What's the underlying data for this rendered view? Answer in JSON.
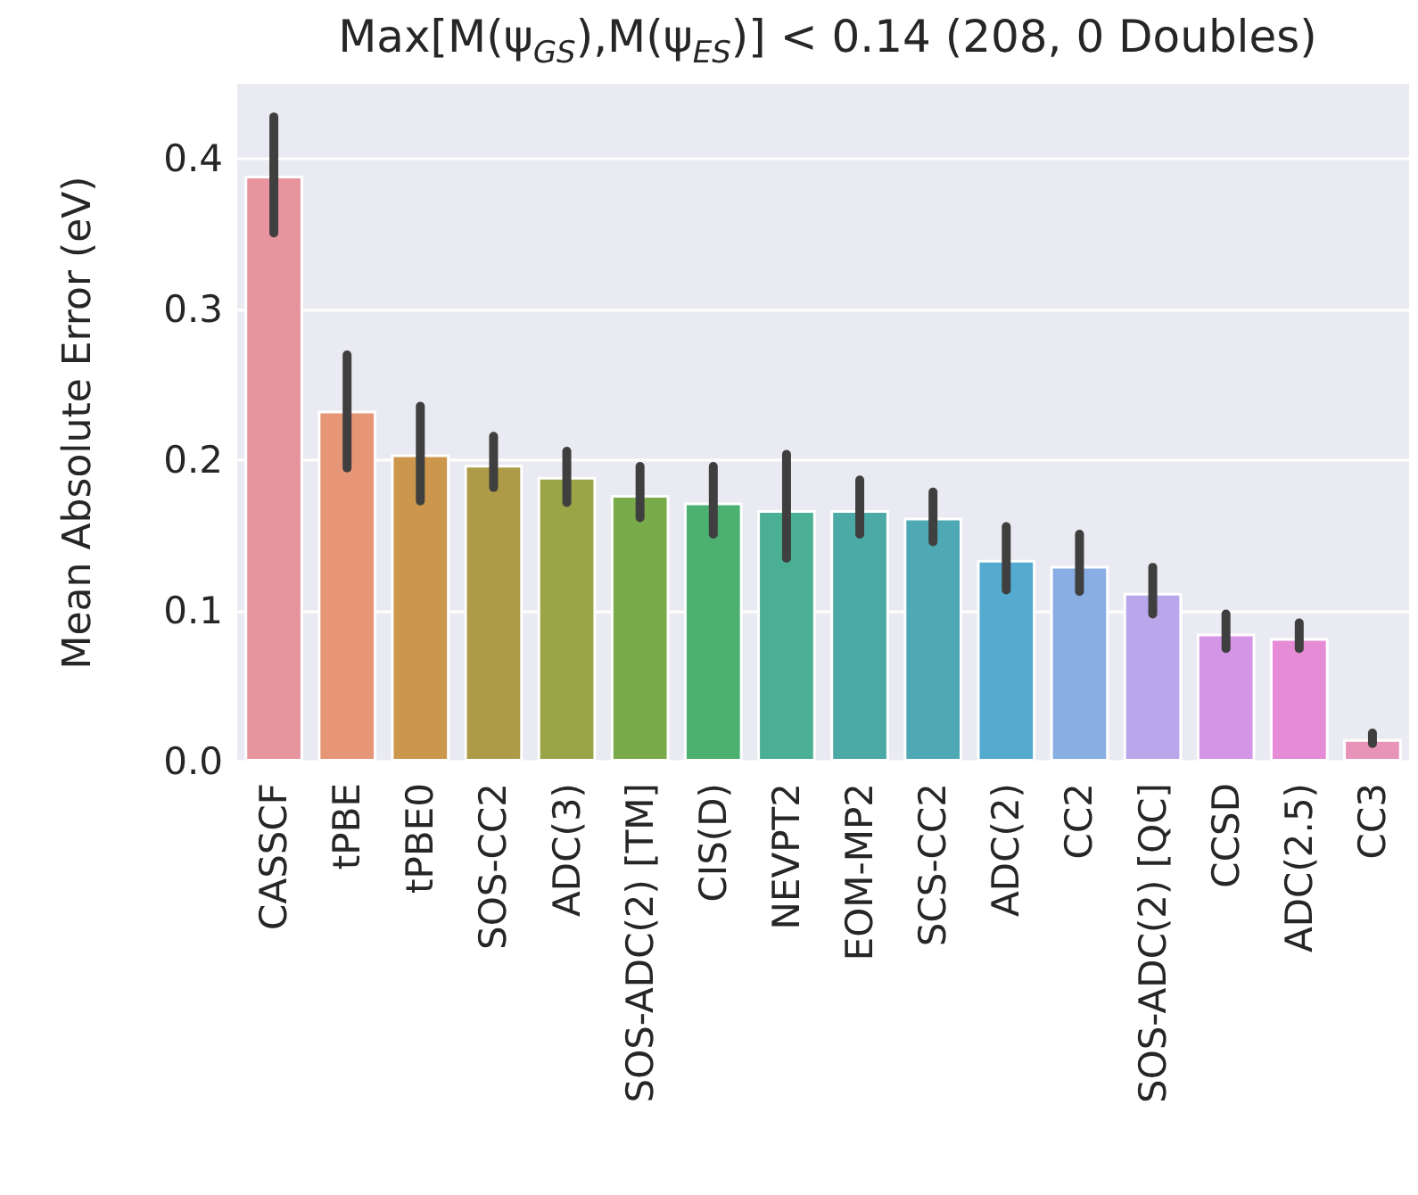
{
  "chart_data": {
    "type": "bar",
    "title": "Max[M(ψ$_{GS}$),M(ψ$_{ES}$)] < 0.14 (208, 0 Doubles)",
    "ylabel": "Mean Absolute Error (eV)",
    "categories": [
      "CASSCF",
      "tPBE",
      "tPBE0",
      "SOS-CC2",
      "ADC(3)",
      "SOS-ADC(2) [TM]",
      "CIS(D)",
      "NEVPT2",
      "EOM-MP2",
      "SCS-CC2",
      "ADC(2)",
      "CC2",
      "SOS-ADC(2) [QC]",
      "CCSD",
      "ADC(2.5)",
      "CC3"
    ],
    "values": [
      0.389,
      0.233,
      0.204,
      0.197,
      0.189,
      0.177,
      0.172,
      0.167,
      0.167,
      0.162,
      0.134,
      0.13,
      0.112,
      0.085,
      0.082,
      0.015
    ],
    "errors": [
      [
        0.351,
        0.428
      ],
      [
        0.195,
        0.27
      ],
      [
        0.173,
        0.236
      ],
      [
        0.182,
        0.216
      ],
      [
        0.172,
        0.206
      ],
      [
        0.162,
        0.196
      ],
      [
        0.151,
        0.196
      ],
      [
        0.135,
        0.204
      ],
      [
        0.151,
        0.187
      ],
      [
        0.146,
        0.179
      ],
      [
        0.114,
        0.156
      ],
      [
        0.113,
        0.151
      ],
      [
        0.098,
        0.129
      ],
      [
        0.075,
        0.098
      ],
      [
        0.075,
        0.092
      ],
      [
        0.012,
        0.019
      ]
    ],
    "colors": [
      "#e8949f",
      "#e69576",
      "#cc974c",
      "#ad9b47",
      "#9aa548",
      "#79ab4b",
      "#4cb070",
      "#4baf93",
      "#4caaa6",
      "#4fa9b5",
      "#54abcf",
      "#88aee3",
      "#b8a7ea",
      "#d495e6",
      "#e68bd5",
      "#e894b8"
    ],
    "ylim": [
      0,
      0.45
    ],
    "yticks": [
      {
        "value": 0,
        "label": "0.0"
      },
      0.1,
      0.2,
      0.3,
      0.4
    ],
    "grid": "y"
  }
}
